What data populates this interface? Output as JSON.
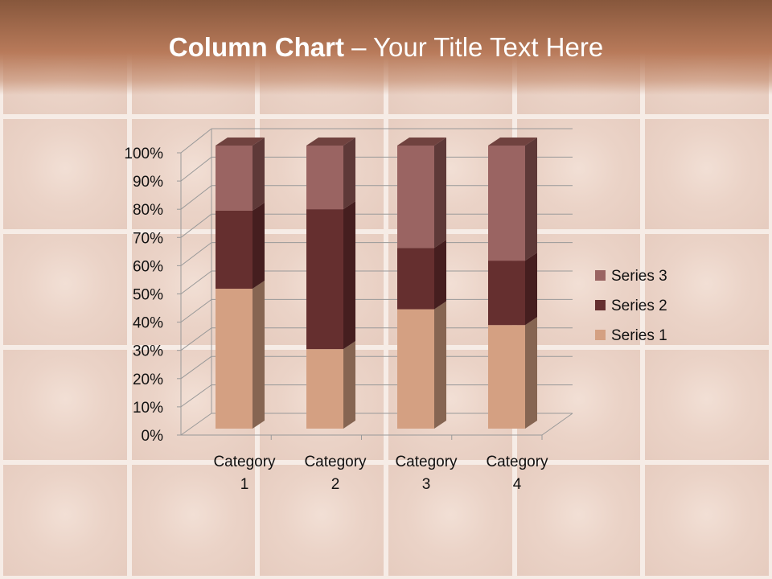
{
  "slide": {
    "title_bold": "Column Chart",
    "title_rest": " – Your Title Text Here"
  },
  "chart_data": {
    "type": "bar",
    "stacking": "percent",
    "categories": [
      "Category 1",
      "Category 2",
      "Category 3",
      "Category 4"
    ],
    "category_lines": [
      [
        "Category",
        "1"
      ],
      [
        "Category",
        "2"
      ],
      [
        "Category",
        "3"
      ],
      [
        "Category",
        "4"
      ]
    ],
    "series": [
      {
        "name": "Series 1",
        "values": [
          4.3,
          2.5,
          3.5,
          4.5
        ],
        "color": "#d4a082",
        "side": "#866552"
      },
      {
        "name": "Series 2",
        "values": [
          2.4,
          4.4,
          1.8,
          2.8
        ],
        "color": "#652f2f",
        "side": "#451e1f"
      },
      {
        "name": "Series 3",
        "values": [
          2,
          2,
          3,
          5
        ],
        "color": "#9a6462",
        "side": "#5e3938"
      }
    ],
    "yticks": [
      "0%",
      "10%",
      "20%",
      "30%",
      "40%",
      "50%",
      "60%",
      "70%",
      "80%",
      "90%",
      "100%"
    ],
    "ylim": [
      0,
      100
    ],
    "grid": true,
    "legend": "right"
  }
}
